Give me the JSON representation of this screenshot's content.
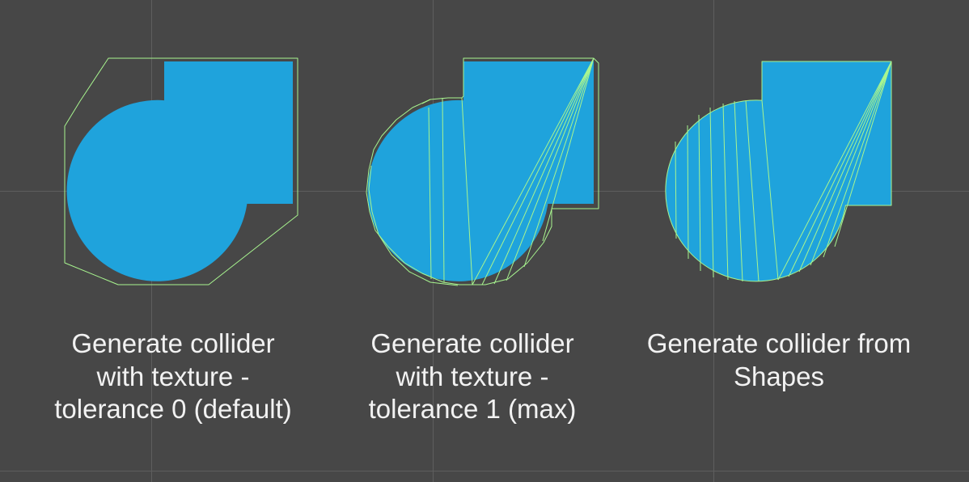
{
  "colors": {
    "background": "#474747",
    "grid": "#5e5e5e",
    "sprite": "#1fa3dc",
    "collider": "#a8f58f",
    "text": "#f2f2f2"
  },
  "panels": [
    {
      "caption_lines": [
        "Generate collider",
        "with texture -",
        "tolerance 0 (default)"
      ],
      "collider_style": "hull"
    },
    {
      "caption_lines": [
        "Generate collider",
        "with texture -",
        "tolerance 1 (max)"
      ],
      "collider_style": "tight-outline"
    },
    {
      "caption_lines": [
        "Generate collider from",
        "Shapes"
      ],
      "collider_style": "shape-triangulation"
    }
  ]
}
